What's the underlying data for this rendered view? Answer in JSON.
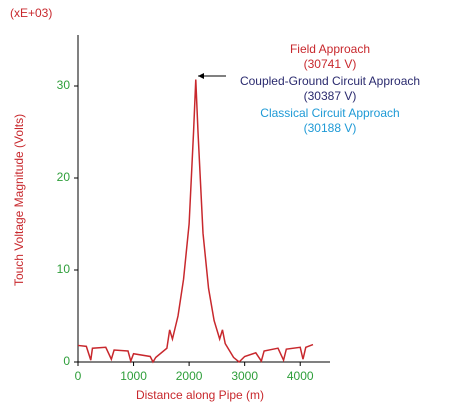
{
  "chart_data": {
    "type": "line",
    "multiplier_label": "(xE+03)",
    "xlabel": "Distance along Pipe (m)",
    "ylabel": "Touch Voltage Magnitude (Volts)",
    "x": [
      0,
      150,
      230,
      260,
      500,
      600,
      650,
      900,
      950,
      1000,
      1300,
      1350,
      1400,
      1600,
      1650,
      1700,
      1800,
      1900,
      2000,
      2080,
      2120,
      2160,
      2250,
      2350,
      2450,
      2550,
      2600,
      2650,
      2800,
      2900,
      3000,
      3200,
      3300,
      3350,
      3600,
      3700,
      3750,
      4000,
      4050,
      4100,
      4230
    ],
    "series": [
      {
        "name": "Field Approach",
        "color": "#c8282d",
        "values": [
          1.8,
          1.7,
          0.2,
          1.5,
          1.6,
          0.3,
          1.3,
          1.2,
          0.1,
          0.9,
          0.6,
          0,
          0.5,
          1.5,
          3.5,
          2.5,
          5,
          9,
          15,
          25,
          30.7,
          25,
          14,
          8,
          4.5,
          2.5,
          3.5,
          2,
          0.5,
          0,
          0.6,
          1.0,
          0.1,
          1.2,
          1.5,
          0.2,
          1.4,
          1.6,
          0.3,
          1.6,
          1.9
        ]
      }
    ],
    "annotations": [
      {
        "text": "Field Approach",
        "value_text": "(30741 V)",
        "color": "#c8282d"
      },
      {
        "text": "Coupled-Ground Circuit Approach",
        "value_text": "(30387 V)",
        "color": "#2a2a6e"
      },
      {
        "text": "Classical Circuit Approach",
        "value_text": "(30188 V)",
        "color": "#1e9ad6"
      }
    ],
    "xlim": [
      0,
      4500
    ],
    "xticks": [
      0,
      1000,
      2000,
      3000,
      4000
    ],
    "ylim": [
      0,
      35.5
    ],
    "yticks": [
      0,
      10,
      20,
      30
    ],
    "tick_color": "#2e9e3a",
    "label_color": "#c8282d"
  }
}
